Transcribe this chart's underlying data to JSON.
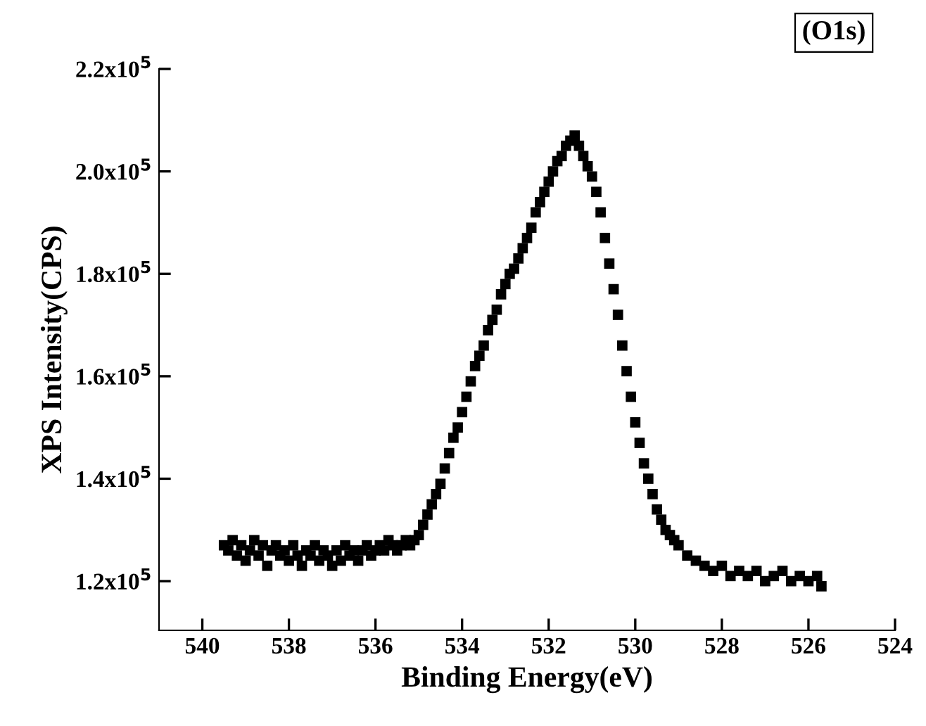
{
  "chart_data": {
    "type": "scatter",
    "xlabel": "Binding Energy(eV)",
    "ylabel": "XPS Intensity(CPS)",
    "annotations": [
      "(O1s)"
    ],
    "xlim": [
      541,
      524
    ],
    "xticks": [
      540,
      538,
      536,
      534,
      532,
      530,
      528,
      526,
      524
    ],
    "ylim": [
      110400,
      220000
    ],
    "yticks": [
      {
        "value": 120000,
        "label": "1.2x10$^{5}$"
      },
      {
        "value": 140000,
        "label": "1.4x10$^{5}$"
      },
      {
        "value": 160000,
        "label": "1.6x10$^{5}$"
      },
      {
        "value": 180000,
        "label": "1.8x10$^{5}$"
      },
      {
        "value": 200000,
        "label": "2.0x10$^{5}$"
      },
      {
        "value": 220000,
        "label": "2.2x10$^{5}$"
      }
    ],
    "grid": false,
    "marker": "square",
    "legend": false,
    "series": [
      {
        "color": "#000000",
        "x": [
          539.5,
          539.4,
          539.3,
          539.2,
          539.1,
          539.0,
          538.9,
          538.8,
          538.7,
          538.6,
          538.5,
          538.4,
          538.3,
          538.2,
          538.1,
          538.0,
          537.9,
          537.8,
          537.7,
          537.6,
          537.5,
          537.4,
          537.3,
          537.2,
          537.1,
          537.0,
          536.9,
          536.8,
          536.7,
          536.6,
          536.5,
          536.4,
          536.3,
          536.2,
          536.1,
          536.0,
          535.9,
          535.8,
          535.7,
          535.6,
          535.5,
          535.4,
          535.3,
          535.2,
          535.1,
          535.0,
          534.9,
          534.8,
          534.7,
          534.6,
          534.5,
          534.4,
          534.3,
          534.2,
          534.1,
          534.0,
          533.9,
          533.8,
          533.7,
          533.6,
          533.5,
          533.4,
          533.3,
          533.2,
          533.1,
          533.0,
          532.9,
          532.8,
          532.7,
          532.6,
          532.5,
          532.4,
          532.3,
          532.2,
          532.1,
          532.0,
          531.9,
          531.8,
          531.7,
          531.6,
          531.5,
          531.4,
          531.3,
          531.2,
          531.1,
          531.0,
          530.9,
          530.8,
          530.7,
          530.6,
          530.5,
          530.4,
          530.3,
          530.2,
          530.1,
          530.0,
          529.9,
          529.8,
          529.7,
          529.6,
          529.5,
          529.4,
          529.3,
          529.2,
          529.1,
          529.0,
          528.8,
          528.6,
          528.4,
          528.2,
          528.0,
          527.8,
          527.6,
          527.4,
          527.2,
          527.0,
          526.8,
          526.6,
          526.4,
          526.2,
          526.0,
          525.8,
          525.7
        ],
        "values": [
          127000,
          126000,
          128000,
          125000,
          127000,
          124000,
          126000,
          128000,
          125000,
          127000,
          123000,
          126000,
          127000,
          125000,
          126000,
          124000,
          127000,
          125000,
          123000,
          126000,
          125000,
          127000,
          124000,
          126000,
          125000,
          123000,
          126000,
          124000,
          127000,
          125000,
          126000,
          124000,
          126000,
          127000,
          125000,
          126000,
          127000,
          126000,
          128000,
          127000,
          126000,
          127000,
          128000,
          127000,
          128000,
          129000,
          131000,
          133000,
          135000,
          137000,
          139000,
          142000,
          145000,
          148000,
          150000,
          153000,
          156000,
          159000,
          162000,
          164000,
          166000,
          169000,
          171000,
          173000,
          176000,
          178000,
          180000,
          181000,
          183000,
          185000,
          187000,
          189000,
          192000,
          194000,
          196000,
          198000,
          200000,
          202000,
          203000,
          205000,
          206000,
          207000,
          205000,
          203000,
          201000,
          199000,
          196000,
          192000,
          187000,
          182000,
          177000,
          172000,
          166000,
          161000,
          156000,
          151000,
          147000,
          143000,
          140000,
          137000,
          134000,
          132000,
          130000,
          129000,
          128000,
          127000,
          125000,
          124000,
          123000,
          122000,
          123000,
          121000,
          122000,
          121000,
          122000,
          120000,
          121000,
          122000,
          120000,
          121000,
          120000,
          121000,
          119000
        ]
      }
    ]
  }
}
